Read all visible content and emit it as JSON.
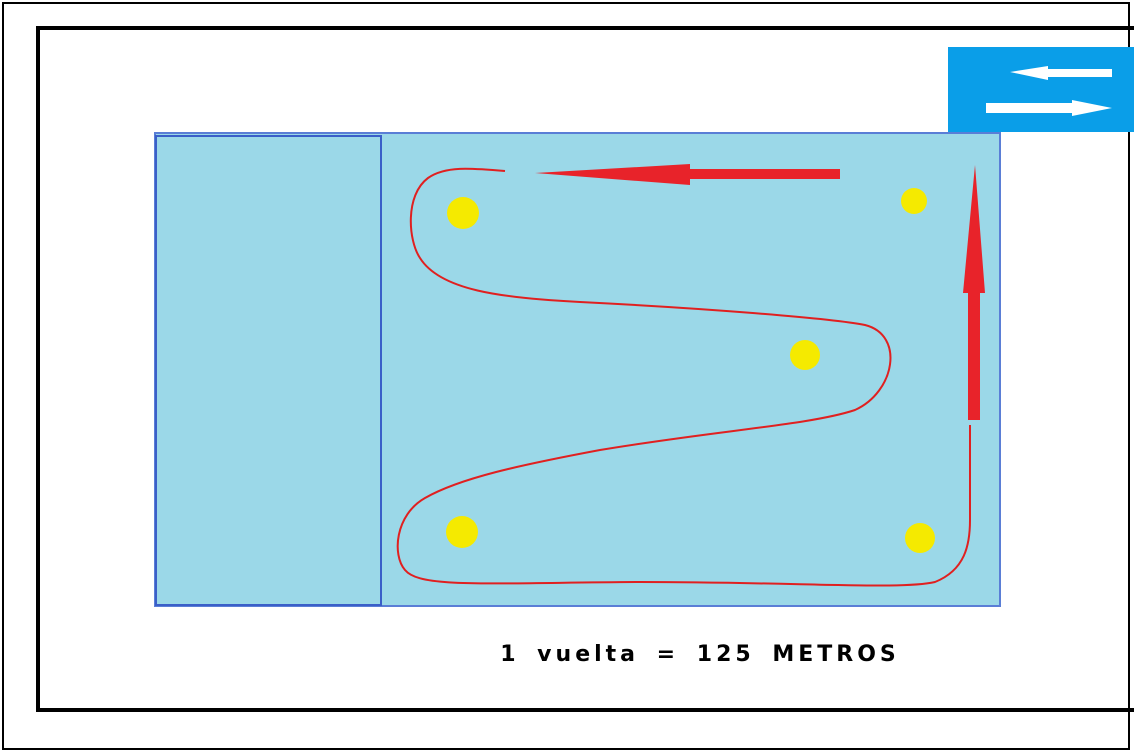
{
  "diagram": {
    "caption": "1 vuelta = 125 METROS",
    "pool": {
      "color": "#9bd8e8",
      "border_color": "#5a7ed6",
      "divider_color": "#3a5fc8"
    },
    "route_color": "#e02020",
    "arrow_color": "#e8232a",
    "marker_color": "#f5ea00",
    "marker_count": 5,
    "direction_sign": {
      "background": "#0a9ee8",
      "icon": "two-way-arrows-icon",
      "arrow_color": "#ffffff"
    }
  }
}
